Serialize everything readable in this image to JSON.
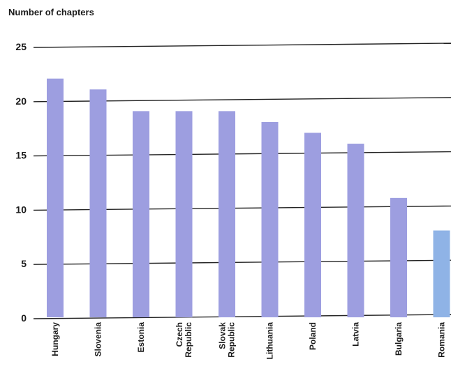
{
  "chart_data": {
    "type": "bar",
    "title": "",
    "xlabel": "",
    "ylabel": "Number of chapters",
    "ylim": [
      0,
      25
    ],
    "yticks": [
      0,
      5,
      10,
      15,
      20,
      25
    ],
    "grid": true,
    "categories": [
      [
        "Hungary"
      ],
      [
        "Slovenia"
      ],
      [
        "Estonia"
      ],
      [
        "Czech",
        "Republic"
      ],
      [
        "Slovak",
        "Republic"
      ],
      [
        "Lithuania"
      ],
      [
        "Poland"
      ],
      [
        "Latvia"
      ],
      [
        "Bulgaria"
      ],
      [
        "Romania"
      ]
    ],
    "values": [
      22,
      21,
      19,
      19,
      19,
      18,
      17,
      16,
      11,
      8
    ],
    "colors": {
      "bar": "#9d9ee0",
      "bar_last": "#8fb3e6",
      "grid": "#222222",
      "text": "#1a1a1a"
    }
  }
}
